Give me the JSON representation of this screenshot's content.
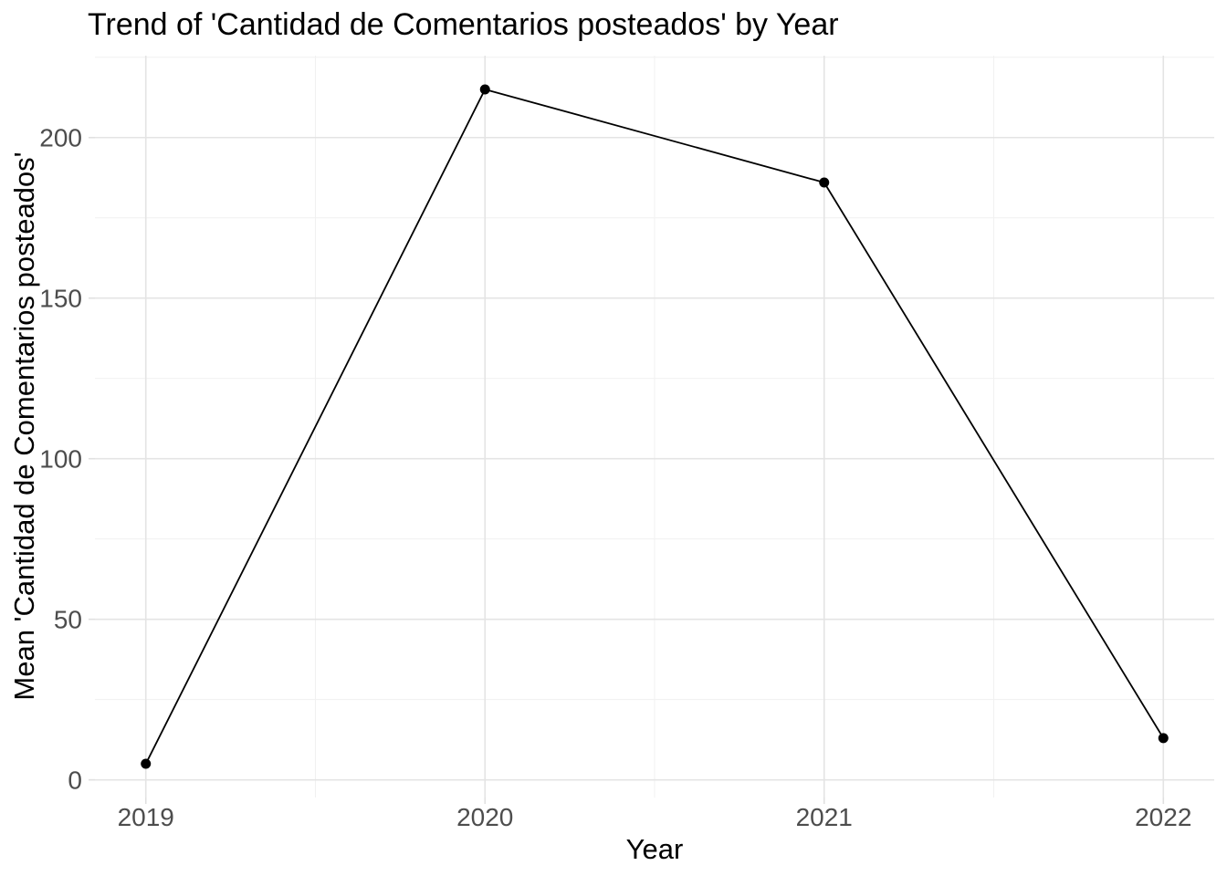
{
  "figure": {
    "title": "Trend of 'Cantidad de Comentarios posteados' by Year"
  },
  "chart_data": {
    "type": "line",
    "title": "Trend of 'Cantidad de Comentarios posteados' by Year",
    "xlabel": "Year",
    "ylabel": "Mean 'Cantidad de Comentarios posteados'",
    "x": [
      2019,
      2020,
      2021,
      2022
    ],
    "series": [
      {
        "name": "Mean 'Cantidad de Comentarios posteados'",
        "values": [
          5,
          215,
          186,
          13
        ]
      }
    ],
    "xticks": [
      "2019",
      "2020",
      "2021",
      "2022"
    ],
    "xtick_positions": [
      2019,
      2020,
      2021,
      2022
    ],
    "yticks": [
      "0",
      "50",
      "100",
      "150",
      "200"
    ],
    "ytick_positions": [
      0,
      50,
      100,
      150,
      200
    ],
    "x_minor_gridlines": [
      2019.5,
      2020.5,
      2021.5
    ],
    "y_minor_gridlines": [
      25,
      75,
      125,
      175,
      225
    ],
    "xlim": [
      2018.85,
      2022.15
    ],
    "ylim": [
      -5.5,
      225.5
    ],
    "grid": "major-and-minor",
    "legend": false,
    "marker": "filled-circle",
    "colors": {
      "line": "#000000",
      "point": "#000000",
      "grid_major": "#E4E4E4",
      "grid_minor": "#F1F1F1",
      "axis_tick": "#E0E0E0",
      "tick_label": "#4D4D4D",
      "axis_title": "#000000",
      "title": "#000000",
      "background": "#FFFFFF"
    }
  }
}
